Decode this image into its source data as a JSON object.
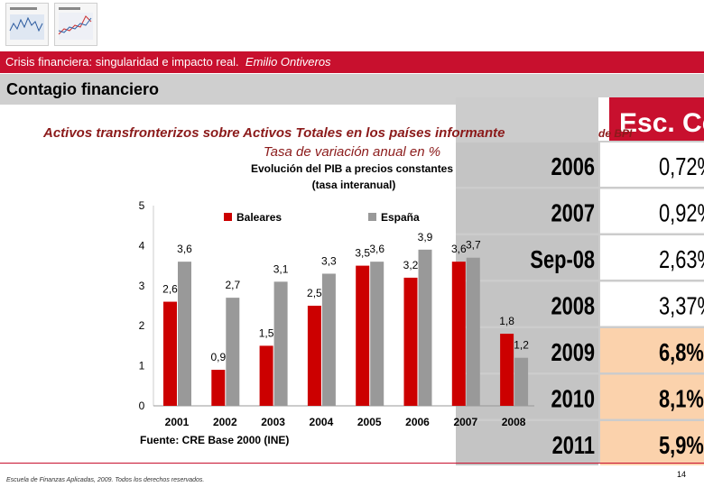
{
  "header": {
    "title": "Crisis financiera: singularidad e impacto real.",
    "author": "Emilio Ontiveros"
  },
  "section": {
    "title": "Contagio financiero"
  },
  "overlay": {
    "title_line1": "Activos transfronterizos sobre Activos Totales en los países informante",
    "title_line2": "Tasa de variación anual en %",
    "fragment": "de BPI"
  },
  "table": {
    "header": "Esc. Ce",
    "rows": [
      {
        "year": "2006",
        "value": "0,72%",
        "highlight": false
      },
      {
        "year": "2007",
        "value": "0,92%",
        "highlight": false
      },
      {
        "year": "Sep-08",
        "value": "2,63%",
        "highlight": false
      },
      {
        "year": "2008",
        "value": "3,37%",
        "highlight": false
      },
      {
        "year": "2009",
        "value": "6,8%",
        "highlight": true
      },
      {
        "year": "2010",
        "value": "8,1%",
        "highlight": true
      },
      {
        "year": "2011",
        "value": "5,9%",
        "highlight": true
      }
    ]
  },
  "chart_data": {
    "type": "bar",
    "title": "Evolución del PIB a precios constantes",
    "subtitle": "(tasa interanual)",
    "categories": [
      "2001",
      "2002",
      "2003",
      "2004",
      "2005",
      "2006",
      "2007",
      "2008"
    ],
    "series": [
      {
        "name": "Baleares",
        "color": "#cc0000",
        "values": [
          2.6,
          0.9,
          1.5,
          2.5,
          3.5,
          3.2,
          3.6,
          1.8
        ],
        "labels": [
          "2,6",
          "0,9",
          "1,5",
          "2,5",
          "3,5",
          "3,2",
          "3,6",
          "1,8"
        ]
      },
      {
        "name": "España",
        "color": "#999999",
        "values": [
          3.6,
          2.7,
          3.1,
          3.3,
          3.6,
          3.9,
          3.7,
          1.2
        ],
        "labels": [
          "3,6",
          "2,7",
          "3,1",
          "3,3",
          "3,6",
          "3,9",
          "3,7",
          "1,2"
        ]
      }
    ],
    "yticks": [
      "0",
      "1",
      "2",
      "3",
      "4",
      "5"
    ],
    "ylim": [
      0,
      5
    ],
    "xlabel": "",
    "ylabel": "",
    "legend": "top",
    "source": "Fuente: CRE Base 2000 (INE)"
  },
  "footer": {
    "text": "Escuela de Finanzas Aplicadas, 2009. Todos los derechos reservados.",
    "page": "14"
  },
  "colors": {
    "accent": "#c8102e",
    "highlight": "#fbd2ac",
    "table_bg": "#cccccc"
  }
}
